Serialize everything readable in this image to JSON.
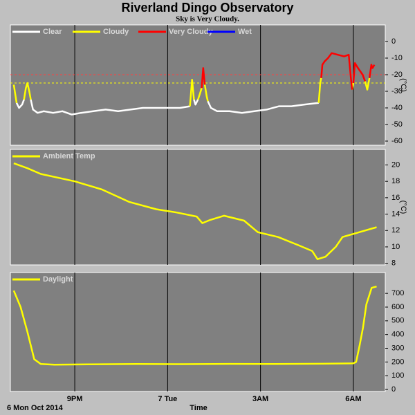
{
  "chart_data": [
    {
      "type": "line",
      "title": "Riverland Dingo Observatory",
      "subtitle": "Sky is Very Cloudy.",
      "ylabel": "(°C)",
      "xlim": [
        18.92,
        31.03
      ],
      "ylim": [
        -62.5,
        10
      ],
      "xticks": [
        {
          "value": 21,
          "label": "9PM"
        },
        {
          "value": 24,
          "label": "7 Tue"
        },
        {
          "value": 27,
          "label": "3AM"
        },
        {
          "value": 30,
          "label": "6AM"
        }
      ],
      "yticks": [
        0,
        -10,
        -20,
        -30,
        -40,
        -50,
        -60
      ],
      "grid": true,
      "thresholds": [
        {
          "value": -20,
          "color": "#ff4040"
        },
        {
          "value": -25,
          "color": "#ffff00"
        }
      ],
      "series": [
        {
          "name": "Clear",
          "color": "#ffffff",
          "x": [
            19.12,
            19.2,
            19.3,
            19.36,
            null,
            19.58,
            19.65,
            19.8,
            20.0,
            20.3,
            20.6,
            20.9,
            21.2,
            21.6,
            22.0,
            22.4,
            22.8,
            23.2,
            23.6,
            24.0,
            24.4,
            24.72,
            null,
            24.85,
            24.9,
            24.98,
            null,
            25.3,
            25.4,
            25.6,
            26.0,
            26.4,
            26.8,
            27.2,
            27.6,
            28.0,
            28.4,
            28.88
          ],
          "values": [
            -37,
            -40,
            -38,
            -35,
            null,
            -35,
            -41,
            -43,
            -42,
            -43,
            -42,
            -44,
            -43,
            -42,
            -41,
            -42,
            -41,
            -40,
            -40,
            -40,
            -40,
            -39,
            null,
            -35,
            -38,
            -35,
            null,
            -36,
            -40,
            -42,
            -42,
            -43,
            -42,
            -41,
            -39,
            -39,
            -38,
            -37
          ]
        },
        {
          "name": "Cloudy",
          "color": "#ffff00",
          "x": [
            19.03,
            19.12,
            null,
            19.36,
            19.42,
            19.47,
            19.53,
            19.58,
            null,
            24.72,
            24.79,
            24.85,
            null,
            24.98,
            25.05,
            25.1,
            null,
            25.2,
            25.26,
            25.3,
            null,
            28.88,
            28.93,
            28.96,
            null,
            29.96,
            30.0,
            null,
            30.38,
            30.45,
            30.52
          ],
          "values": [
            -26,
            -37,
            null,
            -35,
            -28,
            -25,
            -30,
            -35,
            null,
            -39,
            -23,
            -35,
            null,
            -35,
            -31,
            -28,
            null,
            -26,
            -33,
            -36,
            null,
            -37,
            -25,
            -22,
            null,
            -29,
            -25,
            null,
            -24,
            -29,
            -22
          ]
        },
        {
          "name": "Very Cloudy",
          "color": "#ff0000",
          "x": [
            25.1,
            25.15,
            25.2,
            null,
            28.96,
            29.0,
            29.07,
            29.18,
            29.3,
            29.5,
            29.7,
            29.85,
            29.92,
            29.96,
            null,
            30.0,
            30.05,
            30.15,
            30.3,
            30.38,
            null,
            30.52,
            30.58,
            30.62,
            30.68
          ],
          "values": [
            -28,
            -16,
            -26,
            null,
            -22,
            -14,
            -12,
            -10,
            -7,
            -8,
            -9,
            -8,
            -22,
            -29,
            null,
            -25,
            -13,
            -16,
            -20,
            -24,
            null,
            -22,
            -14,
            -16,
            -14
          ]
        },
        {
          "name": "Wet",
          "color": "#0000ff",
          "x": [],
          "values": []
        }
      ]
    },
    {
      "type": "line",
      "ylabel": "(°C)",
      "xlim": [
        18.92,
        31.03
      ],
      "ylim": [
        7.8,
        21.9
      ],
      "xticks": [
        {
          "value": 21,
          "label": "9PM"
        },
        {
          "value": 24,
          "label": "7 Tue"
        },
        {
          "value": 27,
          "label": "3AM"
        },
        {
          "value": 30,
          "label": "6AM"
        }
      ],
      "yticks": [
        8,
        10,
        12,
        14,
        16,
        18,
        20
      ],
      "grid": true,
      "x": [
        19.03,
        19.47,
        19.9,
        21.0,
        21.88,
        22.75,
        23.63,
        24.29,
        24.94,
        25.12,
        25.38,
        25.82,
        26.47,
        26.91,
        27.57,
        28.23,
        28.67,
        28.84,
        29.1,
        29.43,
        29.65,
        30.2,
        30.75
      ],
      "series": [
        {
          "name": "Ambient Temp",
          "color": "#ffff00",
          "values": [
            20.2,
            19.6,
            18.9,
            18.0,
            17.0,
            15.5,
            14.6,
            14.2,
            13.7,
            12.9,
            13.3,
            13.8,
            13.2,
            11.8,
            11.2,
            10.2,
            9.5,
            8.5,
            8.8,
            10.0,
            11.2,
            11.8,
            12.4
          ]
        }
      ]
    },
    {
      "type": "line",
      "xlabel": "Time",
      "x_start_label": "6 Mon Oct 2014",
      "xlim": [
        18.92,
        31.03
      ],
      "ylim": [
        -15,
        852
      ],
      "xticks": [
        {
          "value": 21,
          "label": "9PM"
        },
        {
          "value": 24,
          "label": "7 Tue"
        },
        {
          "value": 27,
          "label": "3AM"
        },
        {
          "value": 30,
          "label": "6AM"
        }
      ],
      "yticks": [
        0,
        100,
        200,
        300,
        400,
        500,
        600,
        700
      ],
      "grid": true,
      "x": [
        19.03,
        19.25,
        19.47,
        19.69,
        19.9,
        20.34,
        21.5,
        23.0,
        24.5,
        26.0,
        27.5,
        29.0,
        30.0,
        30.09,
        30.2,
        30.31,
        30.42,
        30.59,
        30.75
      ],
      "series": [
        {
          "name": "Daylight",
          "color": "#ffff00",
          "values": [
            720,
            600,
            420,
            220,
            185,
            180,
            183,
            185,
            184,
            186,
            185,
            187,
            190,
            200,
            320,
            450,
            620,
            740,
            750
          ]
        }
      ]
    }
  ]
}
